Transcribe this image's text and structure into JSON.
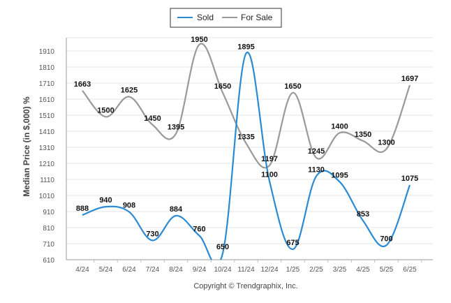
{
  "chart_data": {
    "type": "line",
    "title": "",
    "xlabel": "",
    "ylabel": "Median Price (in $,000) %",
    "categories": [
      "4/24",
      "5/24",
      "6/24",
      "7/24",
      "8/24",
      "9/24",
      "10/24",
      "11/24",
      "12/24",
      "1/25",
      "2/25",
      "3/25",
      "4/25",
      "5/25",
      "6/25"
    ],
    "y_ticks": [
      "610",
      "710",
      "810",
      "910",
      "1010",
      "1110",
      "1210",
      "1310",
      "1410",
      "1510",
      "1610",
      "1710",
      "1810",
      "1910"
    ],
    "ylim": [
      610,
      2010
    ],
    "grid": true,
    "legend_position": "top-center",
    "series": [
      {
        "name": "Sold",
        "color": "#2a8ad4",
        "values": [
          888,
          940,
          908,
          730,
          884,
          760,
          650,
          1895,
          1100,
          675,
          1130,
          1095,
          853,
          700,
          1075
        ],
        "labels": [
          "888",
          "940",
          "908",
          "730",
          "884",
          "760",
          "650",
          "1895",
          "1100",
          "675",
          "1130",
          "1095",
          "853",
          "700",
          "1075"
        ]
      },
      {
        "name": "For Sale",
        "color": "#999999",
        "values": [
          1663,
          1500,
          1625,
          1450,
          1395,
          1950,
          1650,
          1335,
          1197,
          1650,
          1245,
          1400,
          1350,
          1300,
          1697
        ],
        "labels": [
          "1663",
          "1500",
          "1625",
          "1450",
          "1395",
          "1950",
          "1650",
          "1335",
          "1197",
          "1650",
          "1245",
          "1400",
          "1350",
          "1300",
          "1697"
        ]
      }
    ]
  },
  "footer": {
    "copyright": "Copyright © Trendgraphix, Inc."
  }
}
